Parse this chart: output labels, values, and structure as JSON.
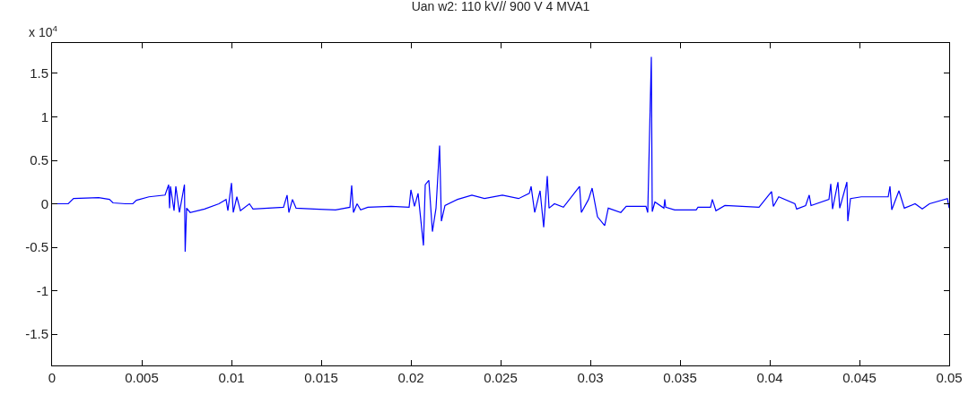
{
  "chart_data": {
    "type": "line",
    "title": "Uan w2: 110 kV// 900 V 4 MVA1",
    "annotations": [
      "x 10$^{4}$"
    ],
    "series": [
      {
        "color": "#0000ff",
        "x": [
          0,
          0.0009,
          0.0012,
          0.0026,
          0.0032,
          0.0034,
          0.0041,
          0.0045,
          0.0047,
          0.0054,
          0.0063,
          0.0065,
          0.00655,
          0.0066,
          0.0068,
          0.0069,
          0.0071,
          0.00738,
          0.00742,
          0.0075,
          0.0077,
          0.0085,
          0.0093,
          0.0097,
          0.0098,
          0.01,
          0.0101,
          0.0103,
          0.0105,
          0.011,
          0.0112,
          0.0129,
          0.0131,
          0.0132,
          0.0134,
          0.0136,
          0.0146,
          0.0158,
          0.0166,
          0.0167,
          0.0168,
          0.017,
          0.0172,
          0.0176,
          0.0189,
          0.0199,
          0.02,
          0.0202,
          0.0204,
          0.0207,
          0.0208,
          0.021,
          0.0212,
          0.0214,
          0.0216,
          0.0217,
          0.0219,
          0.0226,
          0.0234,
          0.0241,
          0.0251,
          0.026,
          0.0266,
          0.0267,
          0.0269,
          0.0272,
          0.0274,
          0.0276,
          0.0277,
          0.028,
          0.0285,
          0.0294,
          0.0295,
          0.0299,
          0.0301,
          0.0304,
          0.0308,
          0.031,
          0.0317,
          0.032,
          0.0331,
          0.0332,
          0.0334,
          0.03345,
          0.0336,
          0.0341,
          0.03415,
          0.0342,
          0.0347,
          0.0359,
          0.036,
          0.0367,
          0.0368,
          0.037,
          0.0375,
          0.0394,
          0.0401,
          0.0402,
          0.0405,
          0.0414,
          0.0415,
          0.042,
          0.0422,
          0.0423,
          0.0433,
          0.0434,
          0.0435,
          0.0438,
          0.0439,
          0.0443,
          0.04435,
          0.0445,
          0.0451,
          0.0466,
          0.0467,
          0.0468,
          0.0472,
          0.0475,
          0.0481,
          0.0485,
          0.0489,
          0.0499,
          0.05
        ],
        "values": [
          0,
          0,
          0.06,
          0.07,
          0.05,
          0.01,
          0,
          0,
          0.04,
          0.08,
          0.1,
          0.22,
          -0.05,
          0.2,
          -0.08,
          0.2,
          -0.1,
          0.22,
          -0.55,
          -0.05,
          -0.1,
          -0.06,
          0.0,
          0.05,
          -0.08,
          0.24,
          -0.1,
          0.08,
          -0.08,
          0.0,
          -0.06,
          -0.04,
          0.1,
          -0.1,
          0.05,
          -0.05,
          -0.06,
          -0.07,
          -0.04,
          0.21,
          -0.1,
          0.0,
          -0.07,
          -0.04,
          -0.03,
          -0.04,
          0.16,
          -0.03,
          0.12,
          -0.48,
          0.22,
          0.27,
          -0.32,
          -0.05,
          0.67,
          -0.2,
          -0.02,
          0.05,
          0.1,
          0.06,
          0.1,
          0.06,
          0.12,
          0.2,
          -0.1,
          0.15,
          -0.27,
          0.32,
          -0.05,
          0.0,
          -0.04,
          0.2,
          -0.1,
          0.05,
          0.18,
          -0.15,
          -0.25,
          -0.05,
          -0.1,
          -0.03,
          -0.03,
          -0.1,
          1.69,
          -0.09,
          0.02,
          -0.05,
          0.05,
          -0.04,
          -0.07,
          -0.07,
          -0.04,
          -0.04,
          0.05,
          -0.08,
          -0.02,
          -0.04,
          0.14,
          -0.03,
          0.08,
          0.0,
          -0.06,
          -0.02,
          0.1,
          -0.02,
          0.05,
          0.23,
          -0.06,
          0.25,
          -0.05,
          0.25,
          -0.2,
          0.06,
          0.08,
          0.08,
          0.2,
          -0.07,
          0.15,
          -0.05,
          0.0,
          -0.06,
          0.0,
          0.06,
          -0.05
        ]
      }
    ],
    "xlim": [
      0,
      0.05
    ],
    "xticks": [
      0,
      0.005,
      0.01,
      0.015,
      0.02,
      0.025,
      0.03,
      0.035,
      0.04,
      0.045,
      0.05
    ],
    "ylim": [
      -1.86,
      1.85
    ],
    "yticks": [
      -1.5,
      -1,
      -0.5,
      0,
      0.5,
      1,
      1.5
    ],
    "marker": "none",
    "line_style": "solid"
  }
}
